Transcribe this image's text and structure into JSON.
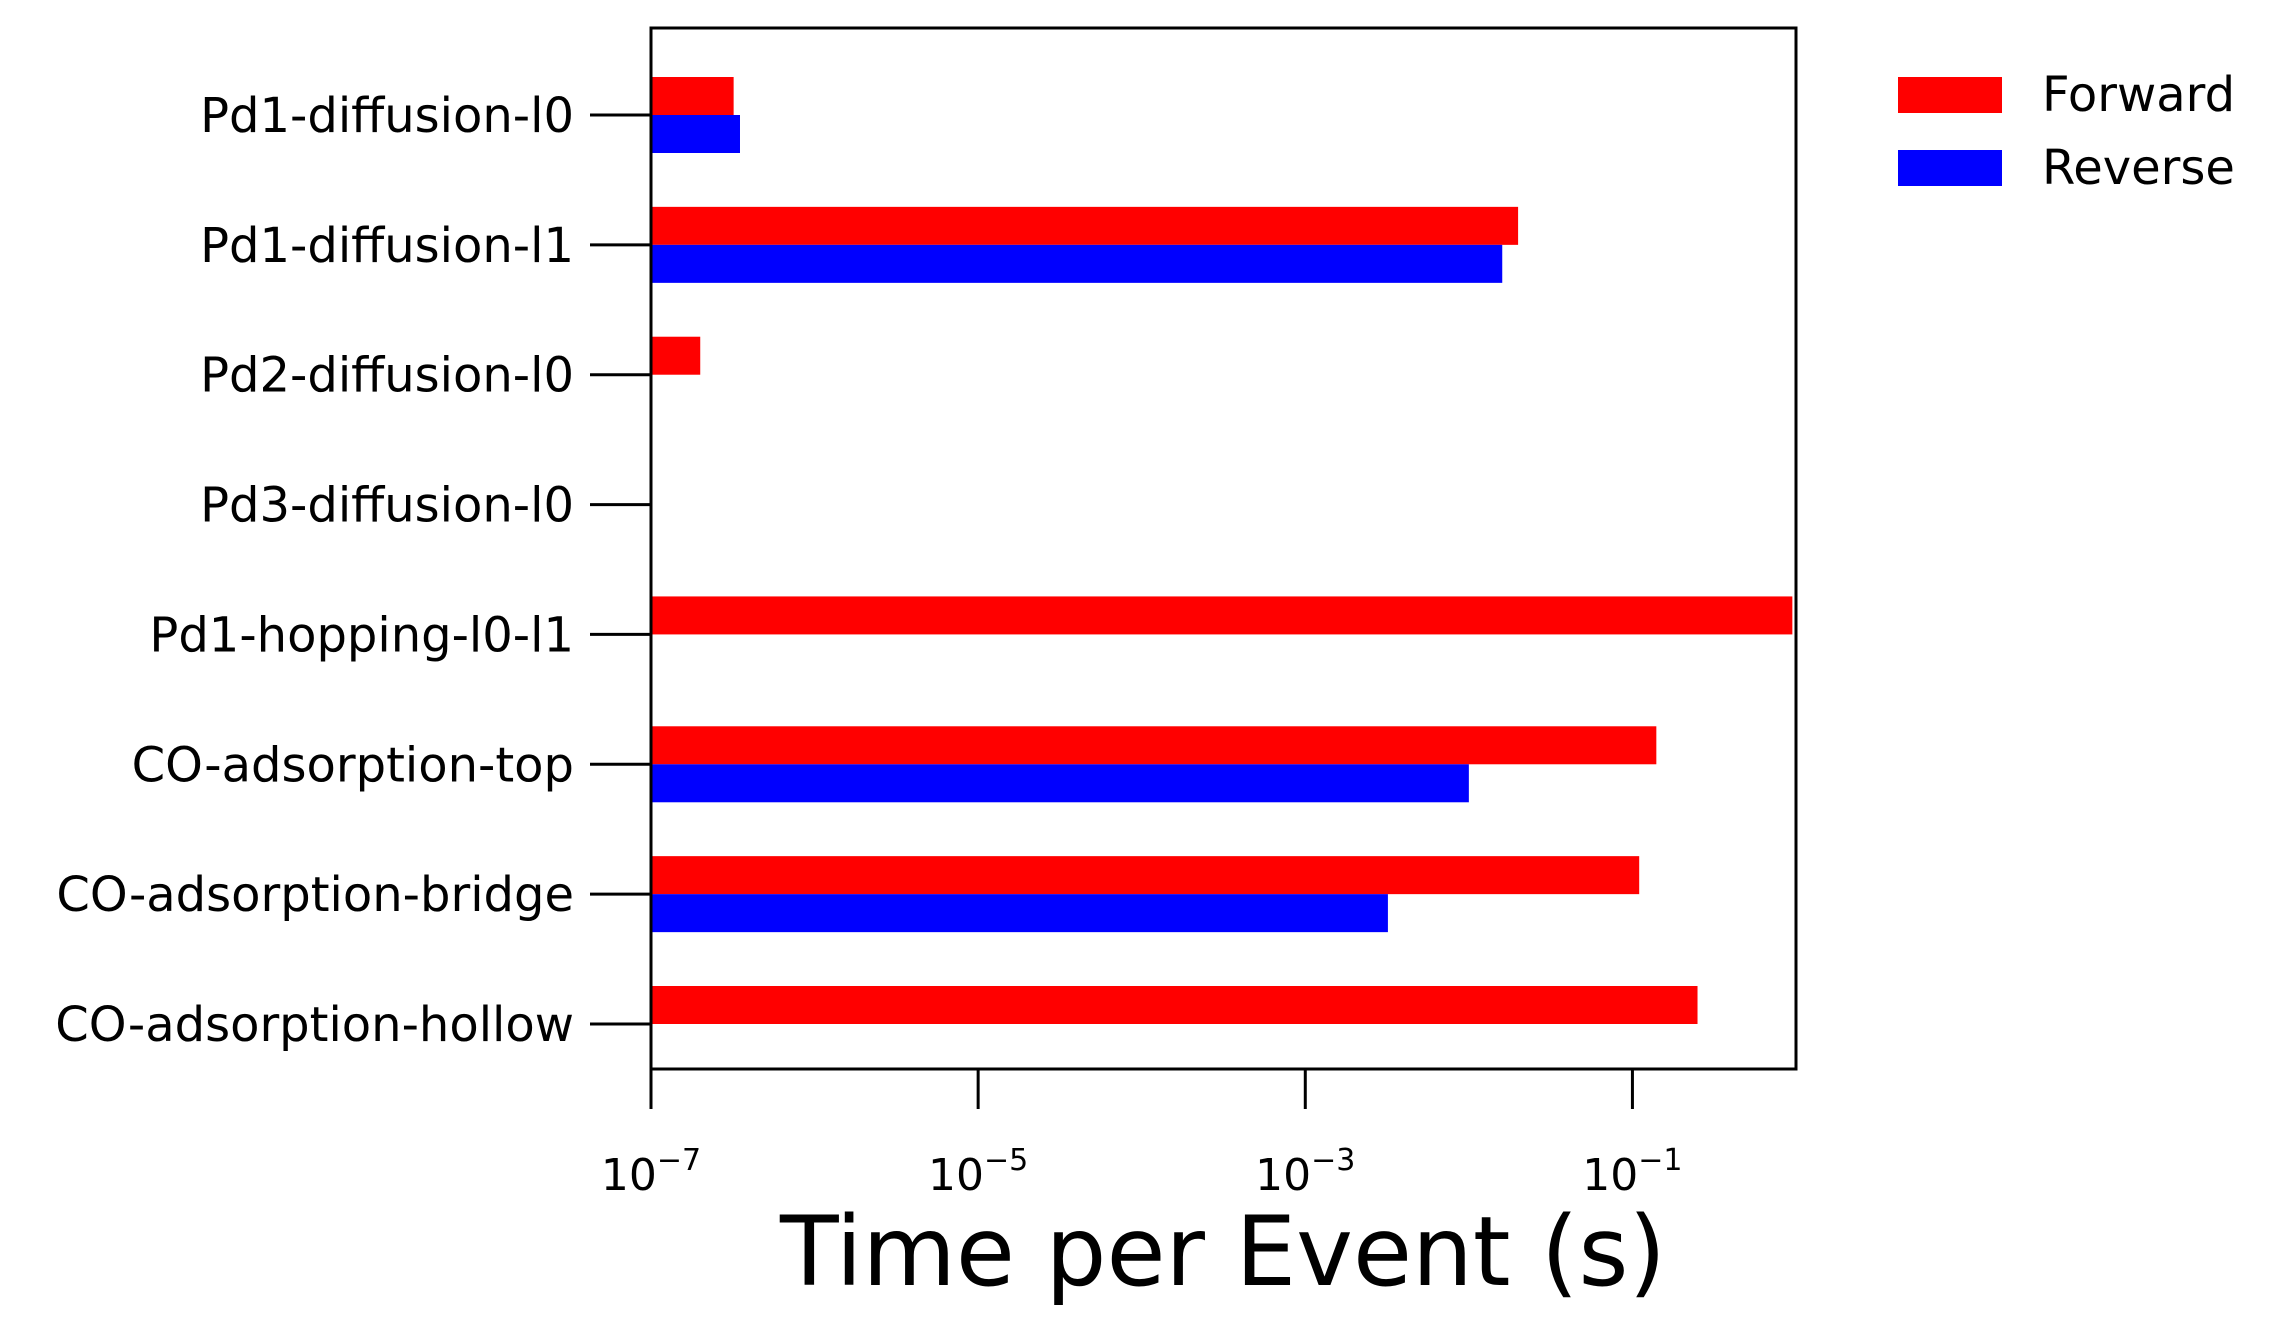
{
  "chart_data": {
    "type": "bar",
    "orientation": "horizontal",
    "categories": [
      "Pd1-diffusion-l0",
      "Pd1-diffusion-l1",
      "Pd2-diffusion-l0",
      "Pd3-diffusion-l0",
      "Pd1-hopping-l0-l1",
      "CO-adsorption-top",
      "CO-adsorption-bridge",
      "CO-adsorption-hollow"
    ],
    "series": [
      {
        "name": "Forward",
        "color": "#ff0000",
        "values": [
          3.2e-07,
          0.02,
          2e-07,
          null,
          0.95,
          0.14,
          0.11,
          0.25
        ]
      },
      {
        "name": "Reverse",
        "color": "#0000ff",
        "values": [
          3.5e-07,
          0.016,
          null,
          null,
          null,
          0.01,
          0.0032,
          null
        ]
      }
    ],
    "xlabel": "Time per Event (s)",
    "ylabel": "",
    "xscale": "log",
    "xlim": [
      1e-07,
      1.0
    ],
    "xticks": [
      {
        "base": "10",
        "exp": "−7",
        "value": 1e-07
      },
      {
        "base": "10",
        "exp": "−5",
        "value": 1e-05
      },
      {
        "base": "10",
        "exp": "−3",
        "value": 0.001
      },
      {
        "base": "10",
        "exp": "−1",
        "value": 0.1
      }
    ],
    "grid": false,
    "legend_position": "outside-top-right"
  }
}
